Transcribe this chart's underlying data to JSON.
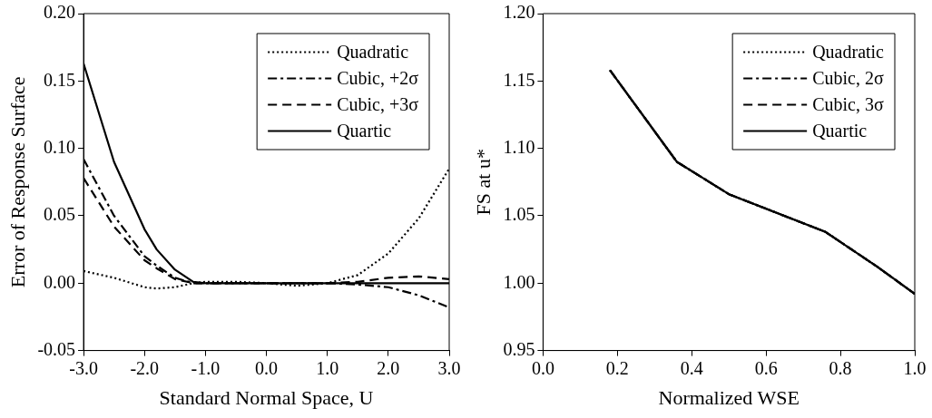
{
  "chart_data": [
    {
      "type": "line",
      "xlabel": "Standard Normal Space, U",
      "ylabel": "Error of Response Surface",
      "legend": "top right",
      "grid": false,
      "marker": "none",
      "x": [
        -3,
        -2.5,
        -2,
        -1.8,
        -1.5,
        -1.2,
        -1,
        -0.5,
        0,
        0.5,
        1,
        1.5,
        2,
        2.5,
        3
      ],
      "xlim": [
        -3,
        3
      ],
      "xticks": [
        {
          "value": -3,
          "label": "-3.0"
        },
        {
          "value": -2,
          "label": "-2.0"
        },
        {
          "value": -1,
          "label": "-1.0"
        },
        {
          "value": 0,
          "label": "0.0"
        },
        {
          "value": 1,
          "label": "1.0"
        },
        {
          "value": 2,
          "label": "2.0"
        },
        {
          "value": 3,
          "label": "3.0"
        }
      ],
      "ylim": [
        -0.05,
        0.2
      ],
      "yticks": [
        {
          "value": -0.05,
          "label": "-0.05"
        },
        {
          "value": 0,
          "label": "0.00"
        },
        {
          "value": 0.05,
          "label": "0.05"
        },
        {
          "value": 0.1,
          "label": "0.10"
        },
        {
          "value": 0.15,
          "label": "0.15"
        },
        {
          "value": 0.2,
          "label": "0.20"
        }
      ],
      "series": [
        {
          "name": "Quadratic",
          "color": "#000000",
          "line_style": "dotted",
          "values": [
            0.009,
            0.004,
            -0.003,
            -0.004,
            -0.003,
            0,
            0.001,
            0.001,
            0,
            -0.002,
            0,
            0.006,
            0.022,
            0.048,
            0.085
          ]
        },
        {
          "name": "Cubic, +2σ",
          "color": "#000000",
          "line_style": "dashdot",
          "values": [
            0.092,
            0.05,
            0.02,
            0.013,
            0.004,
            0,
            0,
            0,
            0,
            0,
            0,
            -0.001,
            -0.003,
            -0.009,
            -0.018
          ]
        },
        {
          "name": "Cubic, +3σ",
          "color": "#000000",
          "line_style": "dashed",
          "values": [
            0.078,
            0.042,
            0.017,
            0.011,
            0.003,
            0,
            0,
            0,
            0,
            0,
            0,
            0.001,
            0.004,
            0.005,
            0.003
          ]
        },
        {
          "name": "Quartic",
          "color": "#000000",
          "line_style": "solid",
          "values": [
            0.163,
            0.09,
            0.04,
            0.025,
            0.01,
            0.001,
            0,
            0,
            0,
            0,
            0,
            0,
            0,
            0,
            0
          ]
        }
      ]
    },
    {
      "type": "line",
      "xlabel": "Normalized WSE",
      "ylabel": "FS at u*",
      "legend": "top right",
      "grid": false,
      "marker": "none",
      "x": [
        0.18,
        0.36,
        0.5,
        0.76,
        0.9,
        1.0
      ],
      "xlim": [
        0,
        1
      ],
      "xticks": [
        {
          "value": 0,
          "label": "0.0"
        },
        {
          "value": 0.2,
          "label": "0.2"
        },
        {
          "value": 0.4,
          "label": "0.4"
        },
        {
          "value": 0.6,
          "label": "0.6"
        },
        {
          "value": 0.8,
          "label": "0.8"
        },
        {
          "value": 1,
          "label": "1.0"
        }
      ],
      "ylim": [
        0.95,
        1.2
      ],
      "yticks": [
        {
          "value": 0.95,
          "label": "0.95"
        },
        {
          "value": 1,
          "label": "1.00"
        },
        {
          "value": 1.05,
          "label": "1.05"
        },
        {
          "value": 1.1,
          "label": "1.10"
        },
        {
          "value": 1.15,
          "label": "1.15"
        },
        {
          "value": 1.2,
          "label": "1.20"
        }
      ],
      "series": [
        {
          "name": "Quadratic",
          "color": "#000000",
          "line_style": "dotted",
          "values": [
            1.158,
            1.09,
            1.066,
            1.038,
            1.012,
            0.992
          ]
        },
        {
          "name": "Cubic, 2σ",
          "color": "#000000",
          "line_style": "dashdot",
          "values": [
            1.158,
            1.09,
            1.066,
            1.038,
            1.012,
            0.992
          ]
        },
        {
          "name": "Cubic, 3σ",
          "color": "#000000",
          "line_style": "dashed",
          "values": [
            1.158,
            1.09,
            1.066,
            1.038,
            1.012,
            0.992
          ]
        },
        {
          "name": "Quartic",
          "color": "#000000",
          "line_style": "solid",
          "values": [
            1.158,
            1.09,
            1.066,
            1.038,
            1.012,
            0.992
          ]
        }
      ]
    }
  ]
}
